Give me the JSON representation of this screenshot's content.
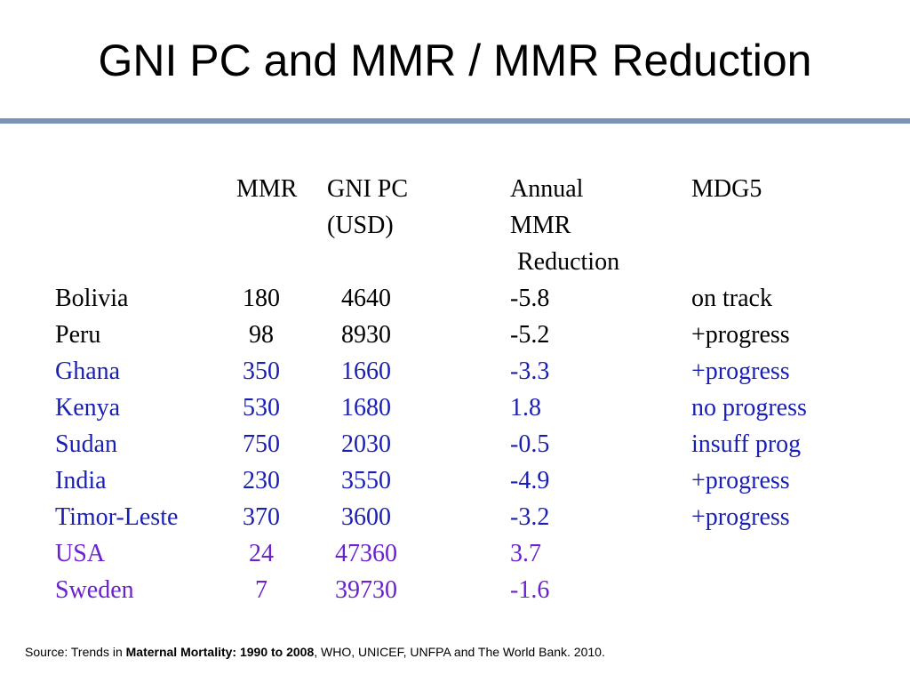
{
  "title": "GNI PC and MMR / MMR Reduction",
  "colors": {
    "rule": "#7b93b8",
    "black": "#000000",
    "blue": "#1a1fb4",
    "purple": "#6a21d0"
  },
  "headers": {
    "mmr": "MMR",
    "gni_line1": "GNI PC",
    "gni_line2": "(USD)",
    "annual_line1": "Annual",
    "annual_line2": "MMR",
    "annual_line3": "Reduction",
    "mdg5": "MDG5"
  },
  "rows": [
    {
      "country": "Bolivia",
      "mmr": "180",
      "gni": "4640",
      "reduction": "-5.8",
      "mdg5": "on track",
      "color": "black"
    },
    {
      "country": "Peru",
      "mmr": "98",
      "gni": "8930",
      "reduction": "-5.2",
      "mdg5": "+progress",
      "color": "black"
    },
    {
      "country": "Ghana",
      "mmr": "350",
      "gni": "1660",
      "reduction": "-3.3",
      "mdg5": "+progress",
      "color": "blue"
    },
    {
      "country": "Kenya",
      "mmr": "530",
      "gni": "1680",
      "reduction": "1.8",
      "mdg5": "no progress",
      "color": "blue"
    },
    {
      "country": "Sudan",
      "mmr": "750",
      "gni": "2030",
      "reduction": "-0.5",
      "mdg5": "insuff prog",
      "color": "blue"
    },
    {
      "country": "India",
      "mmr": "230",
      "gni": "3550",
      "reduction": "-4.9",
      "mdg5": "+progress",
      "color": "blue"
    },
    {
      "country": "Timor-Leste",
      "mmr": "370",
      "gni": "3600",
      "reduction": "-3.2",
      "mdg5": "+progress",
      "color": "blue"
    },
    {
      "country": "USA",
      "mmr": "24",
      "gni": "47360",
      "reduction": "3.7",
      "mdg5": "",
      "color": "purple"
    },
    {
      "country": "Sweden",
      "mmr": "7",
      "gni": "39730",
      "reduction": "-1.6",
      "mdg5": "",
      "color": "purple"
    }
  ],
  "source": {
    "prefix": "Source: Trends in ",
    "bold": "Maternal Mortality: 1990 to 2008",
    "suffix": ", WHO, UNICEF, UNFPA and The World Bank. 2010."
  }
}
